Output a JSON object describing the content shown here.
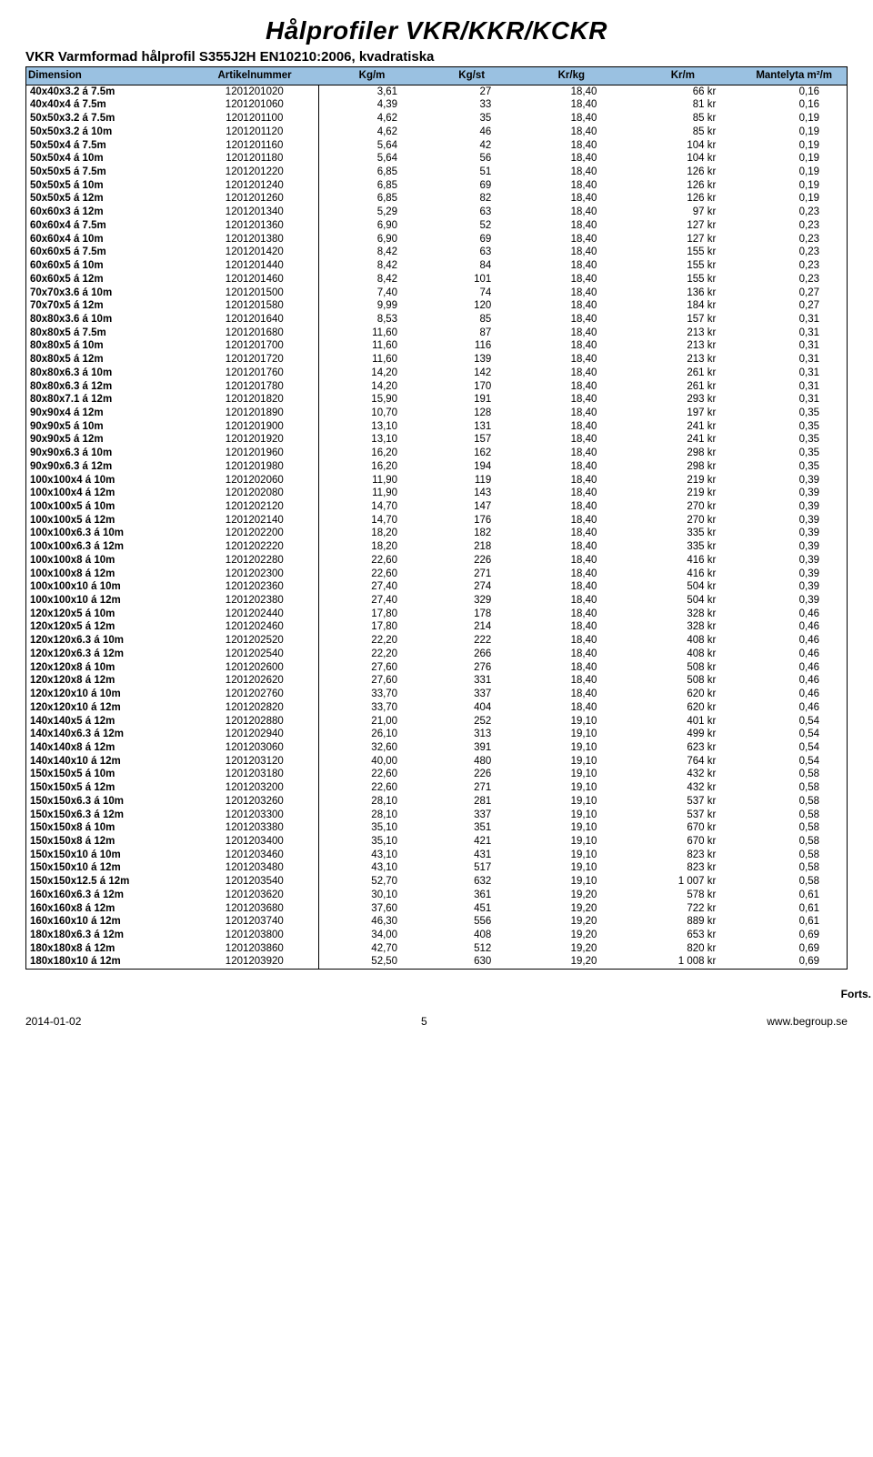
{
  "title": "Hålprofiler VKR/KKR/KCKR",
  "subtitle": "VKR Varmformad hålprofil S355J2H EN10210:2006, kvadratiska",
  "columns": [
    "Dimension",
    "Artikelnummer",
    "Kg/m",
    "Kg/st",
    "Kr/kg",
    "Kr/m",
    "Mantelyta m²/m"
  ],
  "header_bg": "#9ac1e1",
  "forts": "Forts.",
  "footer_left": "2014-01-02",
  "footer_center": "5",
  "footer_right": "www.begroup.se",
  "rows": [
    [
      "40x40x3.2 á 7.5m",
      "1201201020",
      "3,61",
      "27",
      "18,40",
      "66 kr",
      "0,16"
    ],
    [
      "40x40x4 á 7.5m",
      "1201201060",
      "4,39",
      "33",
      "18,40",
      "81 kr",
      "0,16"
    ],
    [
      "50x50x3.2 á 7.5m",
      "1201201100",
      "4,62",
      "35",
      "18,40",
      "85 kr",
      "0,19"
    ],
    [
      "50x50x3.2 á 10m",
      "1201201120",
      "4,62",
      "46",
      "18,40",
      "85 kr",
      "0,19"
    ],
    [
      "50x50x4 á 7.5m",
      "1201201160",
      "5,64",
      "42",
      "18,40",
      "104 kr",
      "0,19"
    ],
    [
      "50x50x4 á 10m",
      "1201201180",
      "5,64",
      "56",
      "18,40",
      "104 kr",
      "0,19"
    ],
    [
      "50x50x5 á 7.5m",
      "1201201220",
      "6,85",
      "51",
      "18,40",
      "126 kr",
      "0,19"
    ],
    [
      "50x50x5 á 10m",
      "1201201240",
      "6,85",
      "69",
      "18,40",
      "126 kr",
      "0,19"
    ],
    [
      "50x50x5 á 12m",
      "1201201260",
      "6,85",
      "82",
      "18,40",
      "126 kr",
      "0,19"
    ],
    [
      "60x60x3 á 12m",
      "1201201340",
      "5,29",
      "63",
      "18,40",
      "97 kr",
      "0,23"
    ],
    [
      "60x60x4 á 7.5m",
      "1201201360",
      "6,90",
      "52",
      "18,40",
      "127 kr",
      "0,23"
    ],
    [
      "60x60x4 á 10m",
      "1201201380",
      "6,90",
      "69",
      "18,40",
      "127 kr",
      "0,23"
    ],
    [
      "60x60x5 á 7.5m",
      "1201201420",
      "8,42",
      "63",
      "18,40",
      "155 kr",
      "0,23"
    ],
    [
      "60x60x5 á 10m",
      "1201201440",
      "8,42",
      "84",
      "18,40",
      "155 kr",
      "0,23"
    ],
    [
      "60x60x5 á 12m",
      "1201201460",
      "8,42",
      "101",
      "18,40",
      "155 kr",
      "0,23"
    ],
    [
      "70x70x3.6 á 10m",
      "1201201500",
      "7,40",
      "74",
      "18,40",
      "136 kr",
      "0,27"
    ],
    [
      "70x70x5 á 12m",
      "1201201580",
      "9,99",
      "120",
      "18,40",
      "184 kr",
      "0,27"
    ],
    [
      "80x80x3.6 á 10m",
      "1201201640",
      "8,53",
      "85",
      "18,40",
      "157 kr",
      "0,31"
    ],
    [
      "80x80x5 á 7.5m",
      "1201201680",
      "11,60",
      "87",
      "18,40",
      "213 kr",
      "0,31"
    ],
    [
      "80x80x5 á 10m",
      "1201201700",
      "11,60",
      "116",
      "18,40",
      "213 kr",
      "0,31"
    ],
    [
      "80x80x5 á 12m",
      "1201201720",
      "11,60",
      "139",
      "18,40",
      "213 kr",
      "0,31"
    ],
    [
      "80x80x6.3 á 10m",
      "1201201760",
      "14,20",
      "142",
      "18,40",
      "261 kr",
      "0,31"
    ],
    [
      "80x80x6.3 á 12m",
      "1201201780",
      "14,20",
      "170",
      "18,40",
      "261 kr",
      "0,31"
    ],
    [
      "80x80x7.1 á 12m",
      "1201201820",
      "15,90",
      "191",
      "18,40",
      "293 kr",
      "0,31"
    ],
    [
      "90x90x4 á 12m",
      "1201201890",
      "10,70",
      "128",
      "18,40",
      "197 kr",
      "0,35"
    ],
    [
      "90x90x5 á 10m",
      "1201201900",
      "13,10",
      "131",
      "18,40",
      "241 kr",
      "0,35"
    ],
    [
      "90x90x5 á 12m",
      "1201201920",
      "13,10",
      "157",
      "18,40",
      "241 kr",
      "0,35"
    ],
    [
      "90x90x6.3 á 10m",
      "1201201960",
      "16,20",
      "162",
      "18,40",
      "298 kr",
      "0,35"
    ],
    [
      "90x90x6.3 á 12m",
      "1201201980",
      "16,20",
      "194",
      "18,40",
      "298 kr",
      "0,35"
    ],
    [
      "100x100x4 á 10m",
      "1201202060",
      "11,90",
      "119",
      "18,40",
      "219 kr",
      "0,39"
    ],
    [
      "100x100x4 á 12m",
      "1201202080",
      "11,90",
      "143",
      "18,40",
      "219 kr",
      "0,39"
    ],
    [
      "100x100x5 á 10m",
      "1201202120",
      "14,70",
      "147",
      "18,40",
      "270 kr",
      "0,39"
    ],
    [
      "100x100x5 á 12m",
      "1201202140",
      "14,70",
      "176",
      "18,40",
      "270 kr",
      "0,39"
    ],
    [
      "100x100x6.3 á 10m",
      "1201202200",
      "18,20",
      "182",
      "18,40",
      "335 kr",
      "0,39"
    ],
    [
      "100x100x6.3 á 12m",
      "1201202220",
      "18,20",
      "218",
      "18,40",
      "335 kr",
      "0,39"
    ],
    [
      "100x100x8 á 10m",
      "1201202280",
      "22,60",
      "226",
      "18,40",
      "416 kr",
      "0,39"
    ],
    [
      "100x100x8 á 12m",
      "1201202300",
      "22,60",
      "271",
      "18,40",
      "416 kr",
      "0,39"
    ],
    [
      "100x100x10 á 10m",
      "1201202360",
      "27,40",
      "274",
      "18,40",
      "504 kr",
      "0,39"
    ],
    [
      "100x100x10 á 12m",
      "1201202380",
      "27,40",
      "329",
      "18,40",
      "504 kr",
      "0,39"
    ],
    [
      "120x120x5 á 10m",
      "1201202440",
      "17,80",
      "178",
      "18,40",
      "328 kr",
      "0,46"
    ],
    [
      "120x120x5 á 12m",
      "1201202460",
      "17,80",
      "214",
      "18,40",
      "328 kr",
      "0,46"
    ],
    [
      "120x120x6.3 á 10m",
      "1201202520",
      "22,20",
      "222",
      "18,40",
      "408 kr",
      "0,46"
    ],
    [
      "120x120x6.3 á 12m",
      "1201202540",
      "22,20",
      "266",
      "18,40",
      "408 kr",
      "0,46"
    ],
    [
      "120x120x8 á 10m",
      "1201202600",
      "27,60",
      "276",
      "18,40",
      "508 kr",
      "0,46"
    ],
    [
      "120x120x8 á 12m",
      "1201202620",
      "27,60",
      "331",
      "18,40",
      "508 kr",
      "0,46"
    ],
    [
      "120x120x10 á 10m",
      "1201202760",
      "33,70",
      "337",
      "18,40",
      "620 kr",
      "0,46"
    ],
    [
      "120x120x10 á 12m",
      "1201202820",
      "33,70",
      "404",
      "18,40",
      "620 kr",
      "0,46"
    ],
    [
      "140x140x5 á 12m",
      "1201202880",
      "21,00",
      "252",
      "19,10",
      "401 kr",
      "0,54"
    ],
    [
      "140x140x6.3 á 12m",
      "1201202940",
      "26,10",
      "313",
      "19,10",
      "499 kr",
      "0,54"
    ],
    [
      "140x140x8 á 12m",
      "1201203060",
      "32,60",
      "391",
      "19,10",
      "623 kr",
      "0,54"
    ],
    [
      "140x140x10 á 12m",
      "1201203120",
      "40,00",
      "480",
      "19,10",
      "764 kr",
      "0,54"
    ],
    [
      "150x150x5 á 10m",
      "1201203180",
      "22,60",
      "226",
      "19,10",
      "432 kr",
      "0,58"
    ],
    [
      "150x150x5 á 12m",
      "1201203200",
      "22,60",
      "271",
      "19,10",
      "432 kr",
      "0,58"
    ],
    [
      "150x150x6.3 á 10m",
      "1201203260",
      "28,10",
      "281",
      "19,10",
      "537 kr",
      "0,58"
    ],
    [
      "150x150x6.3 á 12m",
      "1201203300",
      "28,10",
      "337",
      "19,10",
      "537 kr",
      "0,58"
    ],
    [
      "150x150x8 á 10m",
      "1201203380",
      "35,10",
      "351",
      "19,10",
      "670 kr",
      "0,58"
    ],
    [
      "150x150x8 á 12m",
      "1201203400",
      "35,10",
      "421",
      "19,10",
      "670 kr",
      "0,58"
    ],
    [
      "150x150x10 á 10m",
      "1201203460",
      "43,10",
      "431",
      "19,10",
      "823 kr",
      "0,58"
    ],
    [
      "150x150x10 á 12m",
      "1201203480",
      "43,10",
      "517",
      "19,10",
      "823 kr",
      "0,58"
    ],
    [
      "150x150x12.5 á 12m",
      "1201203540",
      "52,70",
      "632",
      "19,10",
      "1 007 kr",
      "0,58"
    ],
    [
      "160x160x6.3 á 12m",
      "1201203620",
      "30,10",
      "361",
      "19,20",
      "578 kr",
      "0,61"
    ],
    [
      "160x160x8 á 12m",
      "1201203680",
      "37,60",
      "451",
      "19,20",
      "722 kr",
      "0,61"
    ],
    [
      "160x160x10 á 12m",
      "1201203740",
      "46,30",
      "556",
      "19,20",
      "889 kr",
      "0,61"
    ],
    [
      "180x180x6.3 á 12m",
      "1201203800",
      "34,00",
      "408",
      "19,20",
      "653 kr",
      "0,69"
    ],
    [
      "180x180x8 á 12m",
      "1201203860",
      "42,70",
      "512",
      "19,20",
      "820 kr",
      "0,69"
    ],
    [
      "180x180x10 á 12m",
      "1201203920",
      "52,50",
      "630",
      "19,20",
      "1 008 kr",
      "0,69"
    ]
  ]
}
